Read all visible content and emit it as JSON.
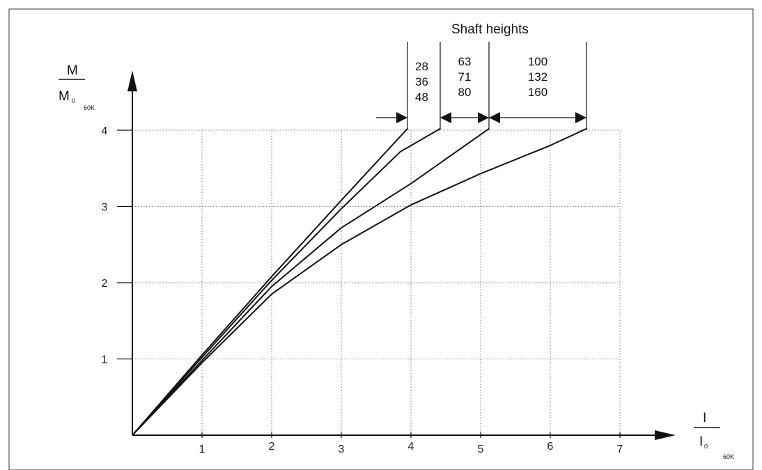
{
  "chart_data": {
    "type": "line",
    "x_ticks": [
      1,
      2,
      3,
      4,
      5,
      6,
      7
    ],
    "y_ticks": [
      1,
      2,
      3,
      4
    ],
    "xlim": [
      0,
      7.6
    ],
    "ylim": [
      0,
      4.6
    ],
    "grid": true,
    "x_axis_label": {
      "numerator": "I",
      "denominator": "I",
      "denominator_sub": "0",
      "suffix": "60K"
    },
    "y_axis_label": {
      "numerator": "M",
      "denominator": "M",
      "denominator_sub": "0",
      "suffix": "60K"
    },
    "legend_title": "Shaft heights",
    "shaft_groups": [
      {
        "lines": [
          "28",
          "36",
          "48"
        ]
      },
      {
        "lines": [
          "63",
          "71",
          "80"
        ]
      },
      {
        "lines": [
          "100",
          "132",
          "160"
        ]
      }
    ],
    "series": [
      {
        "points": [
          [
            0,
            0
          ],
          [
            1,
            1.05
          ],
          [
            2,
            2.08
          ],
          [
            3,
            3.08
          ],
          [
            3.95,
            4.02
          ]
        ]
      },
      {
        "points": [
          [
            0,
            0
          ],
          [
            1,
            1.02
          ],
          [
            2,
            2.03
          ],
          [
            3,
            2.97
          ],
          [
            3.85,
            3.72
          ],
          [
            4.42,
            4.02
          ]
        ]
      },
      {
        "points": [
          [
            0,
            0
          ],
          [
            1,
            0.98
          ],
          [
            2,
            1.95
          ],
          [
            3,
            2.72
          ],
          [
            4,
            3.3
          ],
          [
            5.12,
            4.02
          ]
        ]
      },
      {
        "points": [
          [
            0,
            0
          ],
          [
            1,
            0.95
          ],
          [
            2,
            1.85
          ],
          [
            3,
            2.5
          ],
          [
            4,
            3.02
          ],
          [
            5,
            3.43
          ],
          [
            6,
            3.8
          ],
          [
            6.52,
            4.02
          ]
        ]
      }
    ]
  }
}
